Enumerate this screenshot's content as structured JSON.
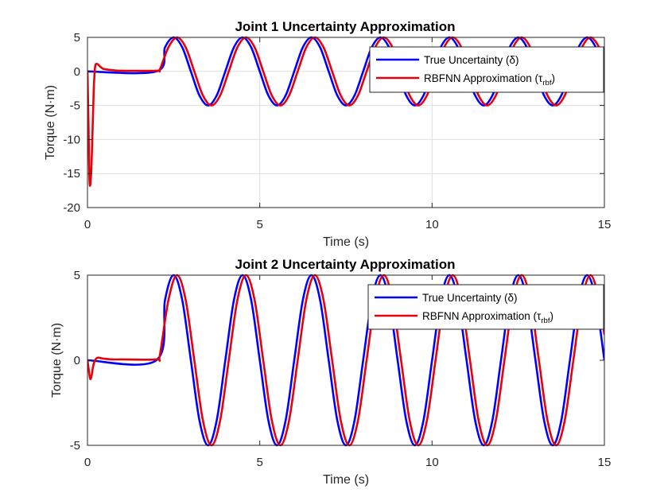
{
  "figure": {
    "background": "#ffffff"
  },
  "chart_data": [
    {
      "type": "line",
      "title": "Joint 1 Uncertainty Approximation",
      "xlabel": "Time (s)",
      "ylabel": "Torque (N·m)",
      "xlim": [
        0,
        15
      ],
      "ylim": [
        -20,
        5
      ],
      "xticks": [
        0,
        5,
        10,
        15
      ],
      "yticks": [
        -20,
        -15,
        -10,
        -5,
        0,
        5
      ],
      "grid": true,
      "legend_position": "top-right",
      "series": [
        {
          "name": "True Uncertainty (δ)",
          "color": "#0000ff",
          "x": [
            0,
            2,
            2.25,
            2.5,
            2.75,
            3.0,
            3.25,
            3.5,
            3.75,
            4.0,
            4.25,
            4.5,
            4.75,
            5.0,
            5.25,
            5.5,
            5.75,
            6.0,
            6.25,
            6.5,
            6.75,
            7.0,
            7.25,
            7.5,
            7.75,
            8.0,
            8.25,
            8.5,
            8.75,
            9.0,
            9.25,
            9.5,
            9.75,
            10.0,
            10.25,
            10.5,
            10.75,
            11.0,
            11.25,
            11.5,
            11.75,
            12.0,
            12.25,
            12.5,
            12.75,
            13.0,
            13.25,
            13.5,
            13.75,
            14.0,
            14.25,
            14.5,
            14.75,
            15.0
          ],
          "y": [
            0,
            0,
            3.54,
            5.0,
            3.54,
            0,
            -3.54,
            -5.0,
            -3.54,
            0,
            3.54,
            5.0,
            3.54,
            0,
            -3.54,
            -5.0,
            -3.54,
            0,
            3.54,
            5.0,
            3.54,
            0,
            -3.54,
            -5.0,
            -3.54,
            0,
            3.54,
            5.0,
            3.54,
            0,
            -3.54,
            -5.0,
            -3.54,
            0,
            3.54,
            5.0,
            3.54,
            0,
            -3.54,
            -5.0,
            -3.54,
            0,
            3.54,
            5.0,
            3.54,
            0,
            -3.54,
            -5.0,
            -3.54,
            0,
            3.54,
            5.0,
            3.54,
            0
          ]
        },
        {
          "name": "RBFNN Approximation (τ_rbf)",
          "color": "#e8000b",
          "x": [
            0,
            0.03,
            0.06,
            0.1,
            0.14,
            0.18,
            0.22,
            0.28,
            0.35,
            0.45,
            0.6,
            0.8,
            1.0,
            2.0,
            2.1,
            2.35,
            2.6,
            2.85,
            3.1,
            3.35,
            3.6,
            3.85,
            4.1,
            4.35,
            4.6,
            4.85,
            5.1,
            5.35,
            5.6,
            5.85,
            6.1,
            6.35,
            6.6,
            6.85,
            7.1,
            7.35,
            7.6,
            7.85,
            8.1,
            8.35,
            8.6,
            8.85,
            9.1,
            9.35,
            9.6,
            9.85,
            10.1,
            10.35,
            10.6,
            10.85,
            11.1,
            11.35,
            11.6,
            11.85,
            12.1,
            12.35,
            12.6,
            12.85,
            13.1,
            13.35,
            13.6,
            13.85,
            14.1,
            14.35,
            14.6,
            14.85,
            15.0
          ],
          "y": [
            0,
            -8,
            -16.2,
            -15.5,
            -10,
            -3,
            0.6,
            1.1,
            0.8,
            0.4,
            0.25,
            0.15,
            0.1,
            0.1,
            0.3,
            3.54,
            5.0,
            3.54,
            0,
            -3.54,
            -5.0,
            -3.54,
            0,
            3.54,
            5.0,
            3.54,
            0,
            -3.54,
            -5.0,
            -3.54,
            0,
            3.54,
            5.0,
            3.54,
            0,
            -3.54,
            -5.0,
            -3.54,
            0,
            3.54,
            5.0,
            3.54,
            0,
            -3.54,
            -5.0,
            -3.54,
            0,
            3.54,
            5.0,
            3.54,
            0,
            -3.54,
            -5.0,
            -3.54,
            0,
            3.54,
            5.0,
            3.54,
            0,
            -3.54,
            -5.0,
            -3.54,
            0,
            3.54,
            5.0,
            3.54,
            1.5
          ]
        }
      ]
    },
    {
      "type": "line",
      "title": "Joint 2 Uncertainty Approximation",
      "xlabel": "Time (s)",
      "ylabel": "Torque (N·m)",
      "xlim": [
        0,
        15
      ],
      "ylim": [
        -5,
        5
      ],
      "xticks": [
        0,
        5,
        10,
        15
      ],
      "yticks": [
        -5,
        0,
        5
      ],
      "grid": false,
      "legend_position": "top-right",
      "series": [
        {
          "name": "True Uncertainty (δ)",
          "color": "#0000ff",
          "x": [
            0,
            2,
            2.25,
            2.5,
            2.75,
            3.0,
            3.25,
            3.5,
            3.75,
            4.0,
            4.25,
            4.5,
            4.75,
            5.0,
            5.25,
            5.5,
            5.75,
            6.0,
            6.25,
            6.5,
            6.75,
            7.0,
            7.25,
            7.5,
            7.75,
            8.0,
            8.25,
            8.5,
            8.75,
            9.0,
            9.25,
            9.5,
            9.75,
            10.0,
            10.25,
            10.5,
            10.75,
            11.0,
            11.25,
            11.5,
            11.75,
            12.0,
            12.25,
            12.5,
            12.75,
            13.0,
            13.25,
            13.5,
            13.75,
            14.0,
            14.25,
            14.5,
            14.75,
            15.0
          ],
          "y": [
            0,
            0,
            3.54,
            5.0,
            3.54,
            0,
            -3.54,
            -5.0,
            -3.54,
            0,
            3.54,
            5.0,
            3.54,
            0,
            -3.54,
            -5.0,
            -3.54,
            0,
            3.54,
            5.0,
            3.54,
            0,
            -3.54,
            -5.0,
            -3.54,
            0,
            3.54,
            5.0,
            3.54,
            0,
            -3.54,
            -5.0,
            -3.54,
            0,
            3.54,
            5.0,
            3.54,
            0,
            -3.54,
            -5.0,
            -3.54,
            0,
            3.54,
            5.0,
            3.54,
            0,
            -3.54,
            -5.0,
            -3.54,
            0,
            3.54,
            5.0,
            3.54,
            0
          ]
        },
        {
          "name": "RBFNN Approximation (τ_rbf)",
          "color": "#e8000b",
          "x": [
            0,
            0.04,
            0.08,
            0.12,
            0.16,
            0.22,
            0.3,
            0.45,
            0.7,
            1.0,
            2.0,
            2.1,
            2.35,
            2.6,
            2.85,
            3.1,
            3.35,
            3.6,
            3.85,
            4.1,
            4.35,
            4.6,
            4.85,
            5.1,
            5.35,
            5.6,
            5.85,
            6.1,
            6.35,
            6.6,
            6.85,
            7.1,
            7.35,
            7.6,
            7.85,
            8.1,
            8.35,
            8.6,
            8.85,
            9.1,
            9.35,
            9.6,
            9.85,
            10.1,
            10.35,
            10.6,
            10.85,
            11.1,
            11.35,
            11.6,
            11.85,
            12.1,
            12.35,
            12.6,
            12.85,
            13.1,
            13.35,
            13.6,
            13.85,
            14.1,
            14.35,
            14.6,
            14.85,
            15.0
          ],
          "y": [
            0,
            -0.6,
            -1.1,
            -0.9,
            -0.4,
            0.0,
            0.15,
            0.1,
            0.05,
            0.05,
            0.05,
            0.3,
            3.54,
            5.0,
            3.54,
            0,
            -3.54,
            -5.0,
            -3.54,
            0,
            3.54,
            5.0,
            3.54,
            0,
            -3.54,
            -5.0,
            -3.54,
            0,
            3.54,
            5.0,
            3.54,
            0,
            -3.54,
            -5.0,
            -3.54,
            0,
            3.54,
            5.0,
            3.54,
            0,
            -3.54,
            -5.0,
            -3.54,
            0,
            3.54,
            5.0,
            3.54,
            0,
            -3.54,
            -5.0,
            -3.54,
            0,
            3.54,
            5.0,
            3.54,
            0,
            -3.54,
            -5.0,
            -3.54,
            0,
            3.54,
            5.0,
            3.54,
            1.5
          ]
        }
      ]
    }
  ]
}
